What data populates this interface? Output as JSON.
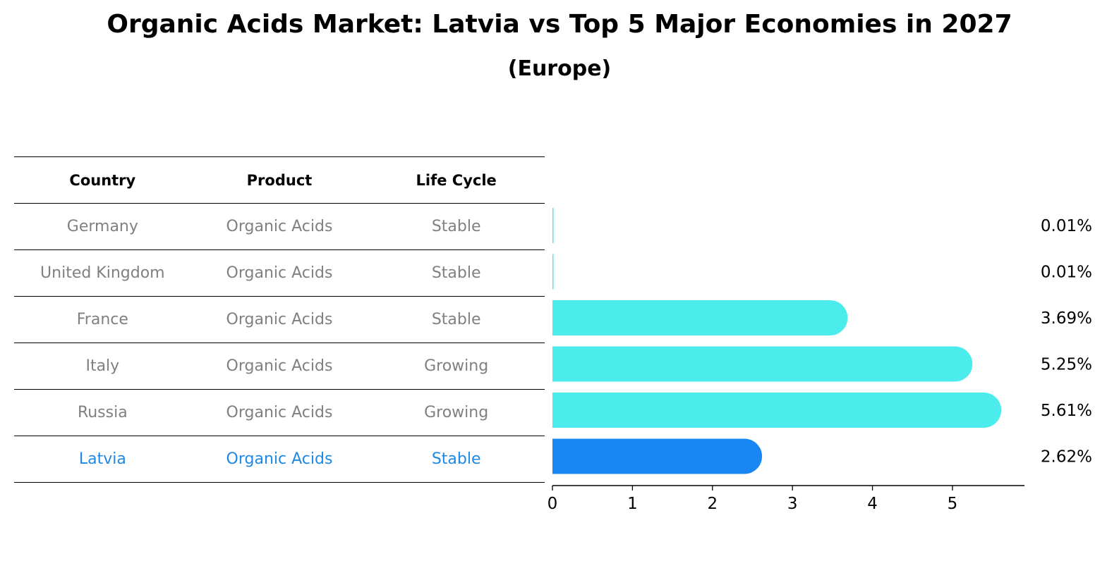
{
  "title": "Organic Acids Market: Latvia vs Top 5 Major Economies in 2027",
  "subtitle": "(Europe)",
  "table": {
    "headers": [
      "Country",
      "Product",
      "Life Cycle"
    ],
    "rows": [
      {
        "country": "Germany",
        "product": "Organic Acids",
        "life_cycle": "Stable"
      },
      {
        "country": "United Kingdom",
        "product": "Organic Acids",
        "life_cycle": "Stable"
      },
      {
        "country": "France",
        "product": "Organic Acids",
        "life_cycle": "Stable"
      },
      {
        "country": "Italy",
        "product": "Organic Acids",
        "life_cycle": "Growing"
      },
      {
        "country": "Russia",
        "product": "Organic Acids",
        "life_cycle": "Growing"
      },
      {
        "country": "Latvia",
        "product": "Organic Acids",
        "life_cycle": "Stable"
      }
    ]
  },
  "chart_data": {
    "type": "bar",
    "orientation": "horizontal",
    "categories": [
      "Germany",
      "United Kingdom",
      "France",
      "Italy",
      "Russia",
      "Latvia"
    ],
    "values": [
      0.01,
      0.01,
      3.69,
      5.25,
      5.61,
      2.62
    ],
    "value_labels": [
      "0.01%",
      "0.01%",
      "3.69%",
      "5.25%",
      "5.61%",
      "2.62%"
    ],
    "xlim": [
      0,
      5.9
    ],
    "xticks": [
      0,
      1,
      2,
      3,
      4,
      5
    ],
    "highlight_category": "Latvia",
    "colors": {
      "default": "#4cecec",
      "highlight": "#1a86f4",
      "table_text": "#808080",
      "table_highlight_text": "#1e88e5"
    },
    "grid": false
  }
}
